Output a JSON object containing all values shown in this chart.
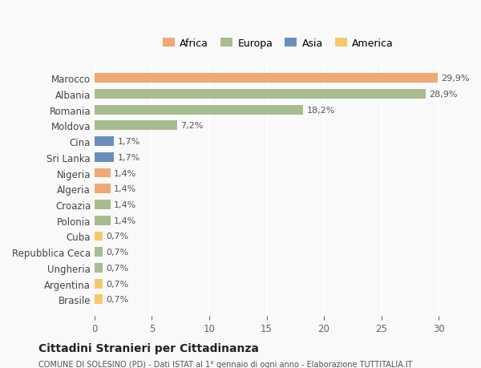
{
  "countries": [
    "Marocco",
    "Albania",
    "Romania",
    "Moldova",
    "Cina",
    "Sri Lanka",
    "Nigeria",
    "Algeria",
    "Croazia",
    "Polonia",
    "Cuba",
    "Repubblica Ceca",
    "Ungheria",
    "Argentina",
    "Brasile"
  ],
  "values": [
    29.9,
    28.9,
    18.2,
    7.2,
    1.7,
    1.7,
    1.4,
    1.4,
    1.4,
    1.4,
    0.7,
    0.7,
    0.7,
    0.7,
    0.7
  ],
  "labels": [
    "29,9%",
    "28,9%",
    "18,2%",
    "7,2%",
    "1,7%",
    "1,7%",
    "1,4%",
    "1,4%",
    "1,4%",
    "1,4%",
    "0,7%",
    "0,7%",
    "0,7%",
    "0,7%",
    "0,7%"
  ],
  "continents": [
    "Africa",
    "Europa",
    "Europa",
    "Europa",
    "Asia",
    "Asia",
    "Africa",
    "Africa",
    "Europa",
    "Europa",
    "America",
    "Europa",
    "Europa",
    "America",
    "America"
  ],
  "continent_colors": {
    "Africa": "#F0A875",
    "Europa": "#A8BC8F",
    "Asia": "#6A8FBF",
    "America": "#F5C96A"
  },
  "legend_order": [
    "Africa",
    "Europa",
    "Asia",
    "America"
  ],
  "title": "Cittadini Stranieri per Cittadinanza",
  "subtitle": "COMUNE DI SOLESINO (PD) - Dati ISTAT al 1° gennaio di ogni anno - Elaborazione TUTTITALIA.IT",
  "xlabel": "",
  "xlim": [
    0,
    32
  ],
  "xticks": [
    0,
    5,
    10,
    15,
    20,
    25,
    30
  ],
  "background_color": "#f9f9f9",
  "grid_color": "#ffffff",
  "bar_height": 0.6
}
